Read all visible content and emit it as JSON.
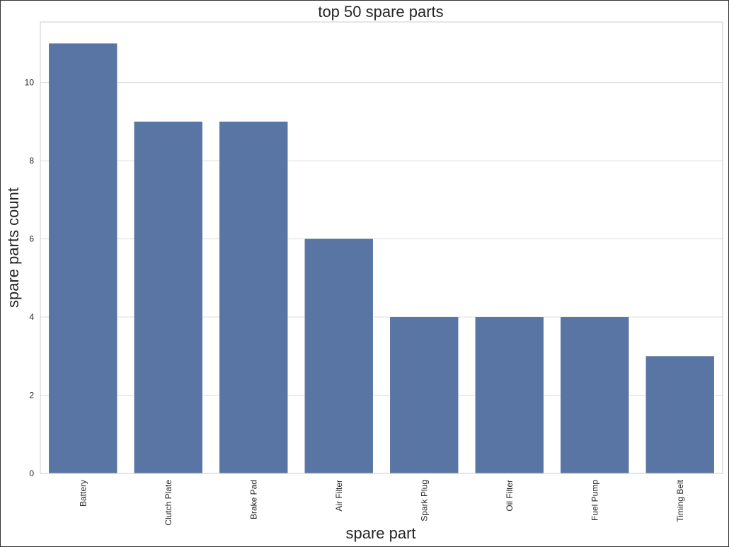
{
  "chart_data": {
    "type": "bar",
    "title": "top 50 spare parts",
    "xlabel": "spare part",
    "ylabel": "spare parts count",
    "categories": [
      "Battery",
      "Clutch Plate",
      "Brake Pad",
      "Air Filter",
      "Spark Plug",
      "Oil Filter",
      "Fuel Pump",
      "Timing Belt"
    ],
    "values": [
      11,
      9,
      9,
      6,
      4,
      4,
      4,
      3
    ],
    "yticks": [
      0,
      2,
      4,
      6,
      8,
      10
    ],
    "ylim": [
      0,
      11.55
    ],
    "grid": "horizontal",
    "bar_color": "#5975a4",
    "grid_color": "#dcdcdc"
  }
}
